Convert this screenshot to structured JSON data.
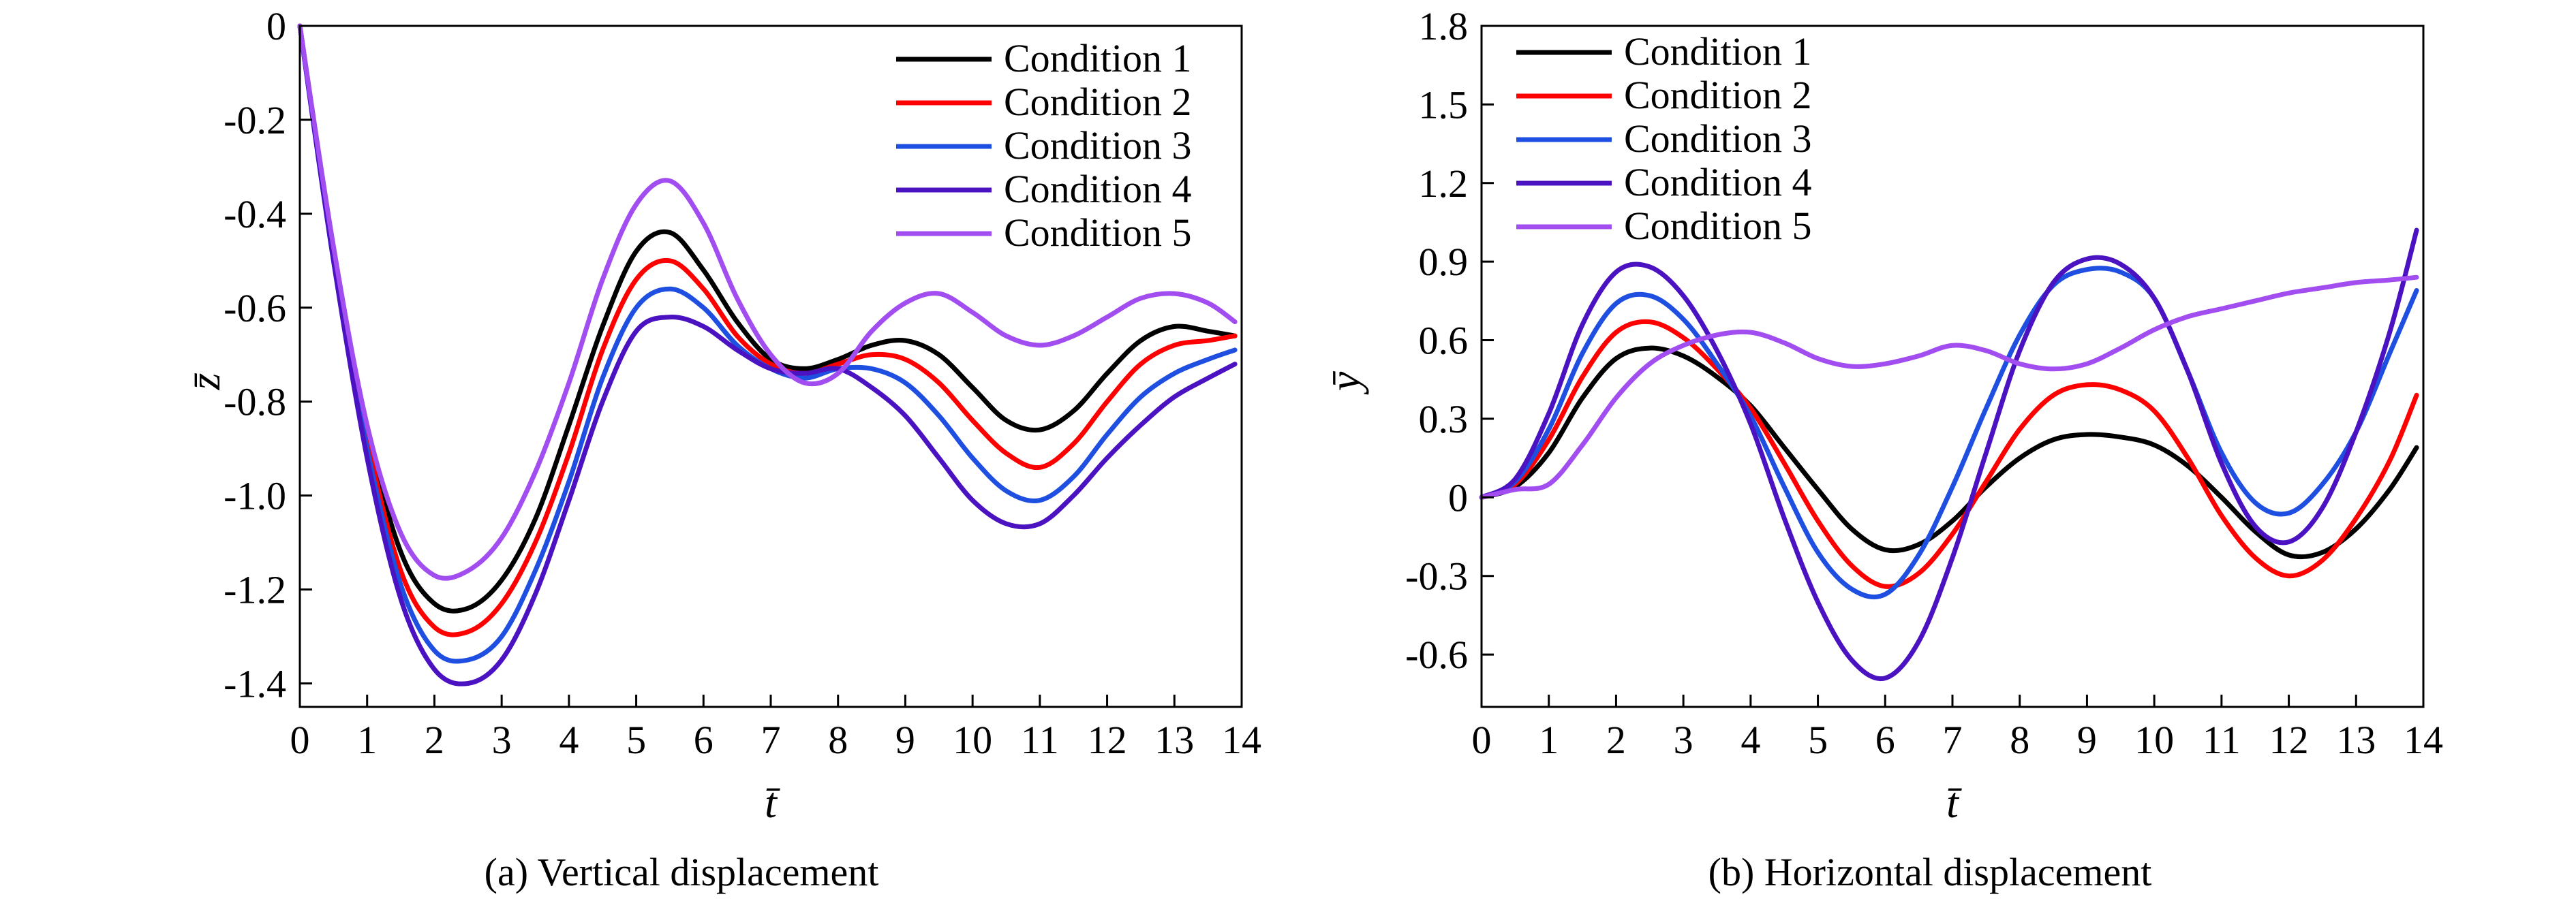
{
  "chart_data": [
    {
      "type": "line",
      "panel": "a",
      "caption": "(a) Vertical displacement",
      "xlabel": "t̄",
      "ylabel": "z̄",
      "xlim": [
        0,
        14
      ],
      "ylim": [
        -1.45,
        0
      ],
      "xticks": [
        0,
        1,
        2,
        3,
        4,
        5,
        6,
        7,
        8,
        9,
        10,
        11,
        12,
        13,
        14
      ],
      "yticks": [
        0,
        -0.2,
        -0.4,
        -0.6,
        -0.8,
        -1.0,
        -1.2,
        -1.4
      ],
      "ytick_labels": [
        "0",
        "-0.2",
        "-0.4",
        "-0.6",
        "-0.8",
        "-1.0",
        "-1.2",
        "-1.4"
      ],
      "grid": false,
      "legend": "top-right",
      "series": [
        {
          "name": "Condition 1",
          "color": "#000000",
          "x": [
            0,
            0.5,
            1,
            1.5,
            2,
            2.5,
            3,
            3.5,
            4,
            4.5,
            5,
            5.5,
            6,
            6.5,
            7,
            7.5,
            8,
            8.5,
            9,
            9.5,
            10,
            10.5,
            11,
            11.5,
            12,
            12.5,
            13,
            13.5,
            13.9
          ],
          "y": [
            0,
            -0.48,
            -0.86,
            -1.12,
            -1.23,
            -1.24,
            -1.18,
            -1.05,
            -0.85,
            -0.64,
            -0.48,
            -0.44,
            -0.52,
            -0.63,
            -0.71,
            -0.73,
            -0.71,
            -0.68,
            -0.67,
            -0.7,
            -0.77,
            -0.84,
            -0.86,
            -0.82,
            -0.74,
            -0.67,
            -0.64,
            -0.65,
            -0.66
          ]
        },
        {
          "name": "Condition 2",
          "color": "#ff0000",
          "x": [
            0,
            0.5,
            1,
            1.5,
            2,
            2.5,
            3,
            3.5,
            4,
            4.5,
            5,
            5.5,
            6,
            6.5,
            7,
            7.5,
            8,
            8.5,
            9,
            9.5,
            10,
            10.5,
            11,
            11.5,
            12,
            12.5,
            13,
            13.5,
            13.9
          ],
          "y": [
            0,
            -0.49,
            -0.88,
            -1.16,
            -1.28,
            -1.29,
            -1.23,
            -1.1,
            -0.91,
            -0.69,
            -0.54,
            -0.5,
            -0.56,
            -0.66,
            -0.72,
            -0.74,
            -0.72,
            -0.7,
            -0.71,
            -0.76,
            -0.84,
            -0.91,
            -0.94,
            -0.89,
            -0.8,
            -0.72,
            -0.68,
            -0.67,
            -0.66
          ]
        },
        {
          "name": "Condition 3",
          "color": "#1f4fe0",
          "x": [
            0,
            0.5,
            1,
            1.5,
            2,
            2.5,
            3,
            3.5,
            4,
            4.5,
            5,
            5.5,
            6,
            6.5,
            7,
            7.5,
            8,
            8.5,
            9,
            9.5,
            10,
            10.5,
            11,
            11.5,
            12,
            12.5,
            13,
            13.5,
            13.9
          ],
          "y": [
            0,
            -0.5,
            -0.9,
            -1.19,
            -1.33,
            -1.35,
            -1.3,
            -1.16,
            -0.97,
            -0.75,
            -0.6,
            -0.56,
            -0.6,
            -0.68,
            -0.73,
            -0.75,
            -0.73,
            -0.73,
            -0.76,
            -0.83,
            -0.92,
            -0.99,
            -1.01,
            -0.96,
            -0.87,
            -0.79,
            -0.74,
            -0.71,
            -0.69
          ]
        },
        {
          "name": "Condition 4",
          "color": "#4a12c0",
          "x": [
            0,
            0.5,
            1,
            1.5,
            2,
            2.5,
            3,
            3.5,
            4,
            4.5,
            5,
            5.5,
            6,
            6.5,
            7,
            7.5,
            8,
            8.5,
            9,
            9.5,
            10,
            10.5,
            11,
            11.5,
            12,
            12.5,
            13,
            13.5,
            13.9
          ],
          "y": [
            0,
            -0.5,
            -0.92,
            -1.22,
            -1.37,
            -1.4,
            -1.35,
            -1.21,
            -1.01,
            -0.8,
            -0.65,
            -0.62,
            -0.64,
            -0.69,
            -0.73,
            -0.74,
            -0.73,
            -0.77,
            -0.83,
            -0.92,
            -1.01,
            -1.06,
            -1.06,
            -1.0,
            -0.92,
            -0.85,
            -0.79,
            -0.75,
            -0.72
          ]
        },
        {
          "name": "Condition 5",
          "color": "#a24df0",
          "x": [
            0,
            0.5,
            1,
            1.5,
            2,
            2.5,
            3,
            3.5,
            4,
            4.5,
            5,
            5.5,
            6,
            6.5,
            7,
            7.5,
            8,
            8.5,
            9,
            9.5,
            10,
            10.5,
            11,
            11.5,
            12,
            12.5,
            13,
            13.5,
            13.9
          ],
          "y": [
            0,
            -0.47,
            -0.85,
            -1.08,
            -1.17,
            -1.16,
            -1.09,
            -0.95,
            -0.76,
            -0.54,
            -0.38,
            -0.33,
            -0.42,
            -0.58,
            -0.7,
            -0.76,
            -0.74,
            -0.65,
            -0.59,
            -0.57,
            -0.61,
            -0.66,
            -0.68,
            -0.66,
            -0.62,
            -0.58,
            -0.57,
            -0.59,
            -0.63
          ]
        }
      ]
    },
    {
      "type": "line",
      "panel": "b",
      "caption": "(b) Horizontal displacement",
      "xlabel": "t̄",
      "ylabel": "ȳ",
      "xlim": [
        0,
        14
      ],
      "ylim": [
        -0.8,
        1.8
      ],
      "xticks": [
        0,
        1,
        2,
        3,
        4,
        5,
        6,
        7,
        8,
        9,
        10,
        11,
        12,
        13,
        14
      ],
      "yticks": [
        1.8,
        1.5,
        1.2,
        0.9,
        0.6,
        0.3,
        0,
        -0.3,
        -0.6
      ],
      "ytick_labels": [
        "1.8",
        "1.5",
        "1.2",
        "0.9",
        "0.6",
        "0.3",
        "0",
        "-0.3",
        "-0.6"
      ],
      "grid": false,
      "legend": "top-left",
      "series": [
        {
          "name": "Condition 1",
          "color": "#000000",
          "x": [
            0,
            0.5,
            1,
            1.5,
            2,
            2.5,
            3,
            3.5,
            4,
            4.5,
            5,
            5.5,
            6,
            6.5,
            7,
            7.5,
            8,
            8.5,
            9,
            9.5,
            10,
            10.5,
            11,
            11.5,
            12,
            12.5,
            13,
            13.5,
            13.9
          ],
          "y": [
            0,
            0.04,
            0.17,
            0.38,
            0.53,
            0.57,
            0.54,
            0.46,
            0.35,
            0.19,
            0.03,
            -0.12,
            -0.2,
            -0.18,
            -0.09,
            0.04,
            0.15,
            0.22,
            0.24,
            0.23,
            0.2,
            0.12,
            0.0,
            -0.13,
            -0.22,
            -0.21,
            -0.12,
            0.03,
            0.19
          ]
        },
        {
          "name": "Condition 2",
          "color": "#ff0000",
          "x": [
            0,
            0.5,
            1,
            1.5,
            2,
            2.5,
            3,
            3.5,
            4,
            4.5,
            5,
            5.5,
            6,
            6.5,
            7,
            7.5,
            8,
            8.5,
            9,
            9.5,
            10,
            10.5,
            11,
            11.5,
            12,
            12.5,
            13,
            13.5,
            13.9
          ],
          "y": [
            0,
            0.05,
            0.22,
            0.46,
            0.63,
            0.67,
            0.61,
            0.49,
            0.34,
            0.13,
            -0.09,
            -0.26,
            -0.34,
            -0.29,
            -0.14,
            0.06,
            0.26,
            0.39,
            0.43,
            0.41,
            0.33,
            0.15,
            -0.07,
            -0.23,
            -0.3,
            -0.24,
            -0.08,
            0.14,
            0.39
          ]
        },
        {
          "name": "Condition 3",
          "color": "#1f4fe0",
          "x": [
            0,
            0.5,
            1,
            1.5,
            2,
            2.5,
            3,
            3.5,
            4,
            4.5,
            5,
            5.5,
            6,
            6.5,
            7,
            7.5,
            8,
            8.5,
            9,
            9.5,
            10,
            10.5,
            11,
            11.5,
            12,
            12.5,
            13,
            13.5,
            13.9
          ],
          "y": [
            0,
            0.06,
            0.26,
            0.55,
            0.74,
            0.77,
            0.68,
            0.51,
            0.31,
            0.04,
            -0.21,
            -0.35,
            -0.37,
            -0.22,
            0.04,
            0.34,
            0.62,
            0.81,
            0.87,
            0.86,
            0.76,
            0.48,
            0.17,
            -0.02,
            -0.06,
            0.05,
            0.25,
            0.55,
            0.79
          ]
        },
        {
          "name": "Condition 4",
          "color": "#4a12c0",
          "x": [
            0,
            0.5,
            1,
            1.5,
            2,
            2.5,
            3,
            3.5,
            4,
            4.5,
            5,
            5.5,
            6,
            6.5,
            7,
            7.5,
            8,
            8.5,
            9,
            9.5,
            10,
            10.5,
            11,
            11.5,
            12,
            12.5,
            13,
            13.5,
            13.9
          ],
          "y": [
            0,
            0.07,
            0.32,
            0.66,
            0.86,
            0.88,
            0.77,
            0.56,
            0.28,
            -0.08,
            -0.4,
            -0.62,
            -0.69,
            -0.55,
            -0.23,
            0.17,
            0.56,
            0.82,
            0.91,
            0.89,
            0.76,
            0.48,
            0.13,
            -0.11,
            -0.17,
            -0.04,
            0.25,
            0.63,
            1.02
          ]
        },
        {
          "name": "Condition 5",
          "color": "#a24df0",
          "x": [
            0,
            0.5,
            1,
            1.5,
            2,
            2.5,
            3,
            3.5,
            4,
            4.5,
            5,
            5.5,
            6,
            6.5,
            7,
            7.5,
            8,
            8.5,
            9,
            9.5,
            10,
            10.5,
            11,
            11.5,
            12,
            12.5,
            13,
            13.5,
            13.9
          ],
          "y": [
            0,
            0.03,
            0.05,
            0.2,
            0.38,
            0.51,
            0.58,
            0.62,
            0.63,
            0.59,
            0.53,
            0.5,
            0.51,
            0.54,
            0.58,
            0.56,
            0.51,
            0.49,
            0.51,
            0.57,
            0.64,
            0.69,
            0.72,
            0.75,
            0.78,
            0.8,
            0.82,
            0.83,
            0.84
          ]
        }
      ]
    }
  ]
}
